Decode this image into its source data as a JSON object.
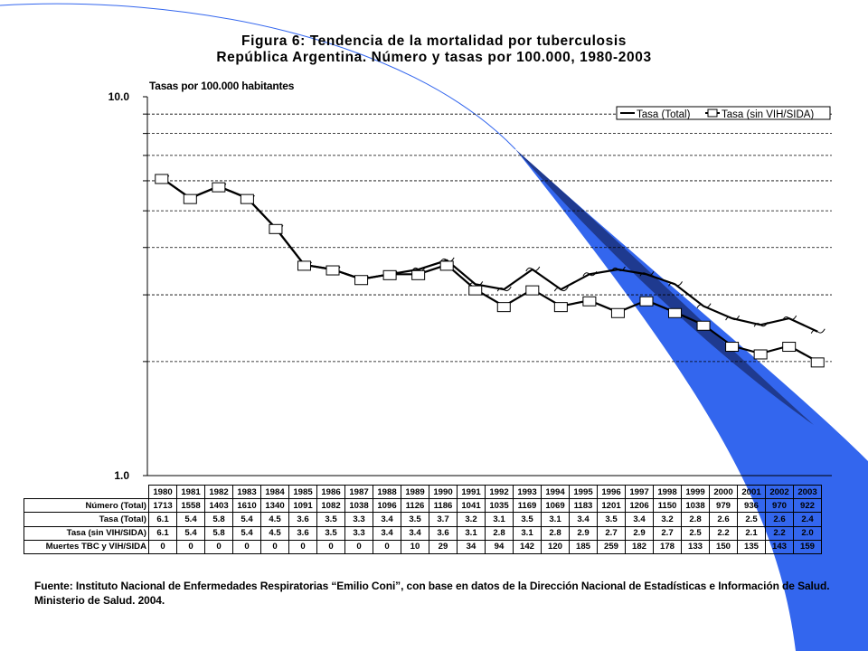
{
  "title": {
    "line1": "Figura 6: Tendencia de la mortalidad por tuberculosis",
    "line2": "República Argentina. Número y tasas por 100.000, 1980-2003"
  },
  "y_axis_label": "Tasas por 100.000 habitantes",
  "source_note": "Fuente: Instituto Nacional de Enfermedades Respiratorias “Emilio Coni”, con base en datos de la Dirección Nacional de Estadísticas e Información de Salud. Ministerio de Salud. 2004.",
  "colors": {
    "accent_blue": "#3366ee",
    "line_series": "#000000",
    "grid": "#000000"
  },
  "chart_data": {
    "type": "line",
    "title": "Figura 6: Tendencia de la mortalidad por tuberculosis",
    "subtitle": "República Argentina. Número y tasas por 100.000, 1980-2003",
    "ylabel": "Tasas por 100.000 habitantes",
    "xlabel": "",
    "y_scale": "log",
    "ylim": [
      1.0,
      10.0
    ],
    "y_tick_labels": [
      "10.0",
      "1.0"
    ],
    "grid": "horizontal dashed",
    "legend_position": "top-right",
    "categories": [
      "1980",
      "1981",
      "1982",
      "1983",
      "1984",
      "1985",
      "1986",
      "1987",
      "1988",
      "1989",
      "1990",
      "1991",
      "1992",
      "1993",
      "1994",
      "1995",
      "1996",
      "1997",
      "1998",
      "1999",
      "2000",
      "2001",
      "2002",
      "2003"
    ],
    "series": [
      {
        "name": "Tasa (Total)",
        "values": [
          6.1,
          5.4,
          5.8,
          5.4,
          4.5,
          3.6,
          3.5,
          3.3,
          3.4,
          3.5,
          3.7,
          3.2,
          3.1,
          3.5,
          3.1,
          3.4,
          3.5,
          3.4,
          3.2,
          2.8,
          2.6,
          2.5,
          2.6,
          2.4
        ]
      },
      {
        "name": "Tasa (sin VIH/SIDA)",
        "values": [
          6.1,
          5.4,
          5.8,
          5.4,
          4.5,
          3.6,
          3.5,
          3.3,
          3.4,
          3.4,
          3.6,
          3.1,
          2.8,
          3.1,
          2.8,
          2.9,
          2.7,
          2.9,
          2.7,
          2.5,
          2.2,
          2.1,
          2.2,
          2.0
        ]
      }
    ]
  },
  "table": {
    "rows": [
      {
        "label": "Número (Total)",
        "values": [
          "1713",
          "1558",
          "1403",
          "1610",
          "1340",
          "1091",
          "1082",
          "1038",
          "1096",
          "1126",
          "1186",
          "1041",
          "1035",
          "1169",
          "1069",
          "1183",
          "1201",
          "1206",
          "1150",
          "1038",
          "979",
          "936",
          "970",
          "922"
        ]
      },
      {
        "label": "Tasa (Total)",
        "values": [
          "6.1",
          "5.4",
          "5.8",
          "5.4",
          "4.5",
          "3.6",
          "3.5",
          "3.3",
          "3.4",
          "3.5",
          "3.7",
          "3.2",
          "3.1",
          "3.5",
          "3.1",
          "3.4",
          "3.5",
          "3.4",
          "3.2",
          "2.8",
          "2.6",
          "2.5",
          "2.6",
          "2.4"
        ]
      },
      {
        "label": "Tasa (sin VIH/SIDA)",
        "values": [
          "6.1",
          "5.4",
          "5.8",
          "5.4",
          "4.5",
          "3.6",
          "3.5",
          "3.3",
          "3.4",
          "3.4",
          "3.6",
          "3.1",
          "2.8",
          "3.1",
          "2.8",
          "2.9",
          "2.7",
          "2.9",
          "2.7",
          "2.5",
          "2.2",
          "2.1",
          "2.2",
          "2.0"
        ]
      },
      {
        "label": "Muertes TBC y VIH/SIDA",
        "values": [
          "0",
          "0",
          "0",
          "0",
          "0",
          "0",
          "0",
          "0",
          "0",
          "10",
          "29",
          "34",
          "94",
          "142",
          "120",
          "185",
          "259",
          "182",
          "178",
          "133",
          "150",
          "135",
          "143",
          "159"
        ]
      }
    ]
  }
}
